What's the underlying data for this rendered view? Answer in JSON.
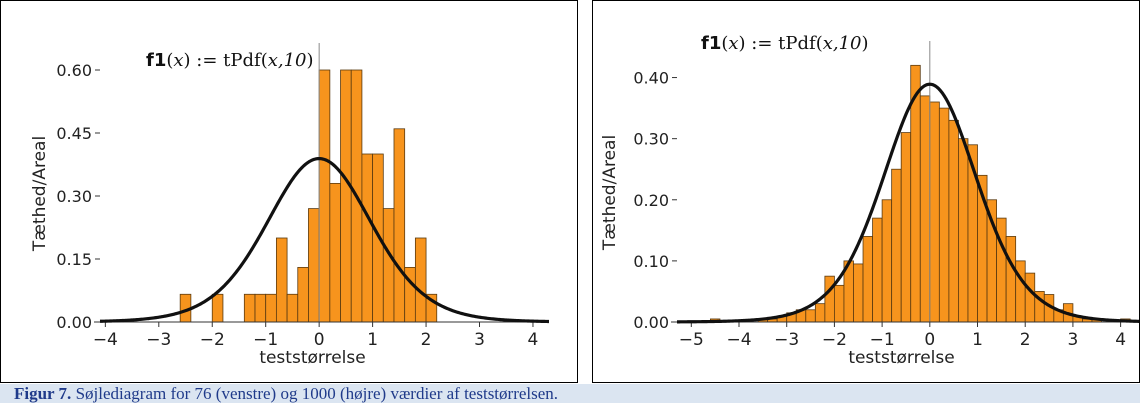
{
  "colors": {
    "bar_fill": "#f7941d",
    "bar_stroke": "#5a3a10",
    "curve": "#111111",
    "caption_bg": "#dbe5f1",
    "caption_text": "#1f3a8a"
  },
  "caption": {
    "label": "Figur 7.",
    "text": "Søjlediagram for 76 (venstre) og 1000 (højre) værdier af teststørrelsen."
  },
  "chart_data": [
    {
      "type": "bar",
      "title": "",
      "xlabel": "teststørrelse",
      "ylabel": "Tæthed/Areal",
      "formula": {
        "name": "f1",
        "arg": "x",
        "rhs_fn": "tPdf",
        "rhs_args": "x,10"
      },
      "xlim": [
        -4.1,
        4.3
      ],
      "ylim": [
        0,
        0.65
      ],
      "xticks": [
        "−4",
        "−3",
        "−2",
        "−1",
        "0",
        "1",
        "2",
        "3",
        "4"
      ],
      "xtick_values": [
        -4,
        -3,
        -2,
        -1,
        0,
        1,
        2,
        3,
        4
      ],
      "yticks": [
        "0.00",
        "0.15",
        "0.30",
        "0.45",
        "0.60"
      ],
      "ytick_values": [
        0,
        0.15,
        0.3,
        0.45,
        0.6
      ],
      "bin_width": 0.2,
      "bins": [
        {
          "x0": -2.6,
          "value": 0.066
        },
        {
          "x0": -2.4,
          "value": 0.0
        },
        {
          "x0": -2.2,
          "value": 0.0
        },
        {
          "x0": -2.0,
          "value": 0.066
        },
        {
          "x0": -1.8,
          "value": 0.0
        },
        {
          "x0": -1.6,
          "value": 0.0
        },
        {
          "x0": -1.4,
          "value": 0.066
        },
        {
          "x0": -1.2,
          "value": 0.066
        },
        {
          "x0": -1.0,
          "value": 0.066
        },
        {
          "x0": -0.8,
          "value": 0.2
        },
        {
          "x0": -0.6,
          "value": 0.066
        },
        {
          "x0": -0.4,
          "value": 0.13
        },
        {
          "x0": -0.2,
          "value": 0.27
        },
        {
          "x0": 0.0,
          "value": 0.6
        },
        {
          "x0": 0.2,
          "value": 0.33
        },
        {
          "x0": 0.4,
          "value": 0.6
        },
        {
          "x0": 0.6,
          "value": 0.6
        },
        {
          "x0": 0.8,
          "value": 0.4
        },
        {
          "x0": 1.0,
          "value": 0.4
        },
        {
          "x0": 1.2,
          "value": 0.27
        },
        {
          "x0": 1.4,
          "value": 0.46
        },
        {
          "x0": 1.6,
          "value": 0.13
        },
        {
          "x0": 1.8,
          "value": 0.2
        },
        {
          "x0": 2.0,
          "value": 0.066
        }
      ],
      "curve": "tPdf(x,10)"
    },
    {
      "type": "bar",
      "title": "",
      "xlabel": "teststørrelse",
      "ylabel": "Tæthed/Areal",
      "formula": {
        "name": "f1",
        "arg": "x",
        "rhs_fn": "tPdf",
        "rhs_args": "x,10"
      },
      "xlim": [
        -5.3,
        4.7
      ],
      "ylim": [
        0,
        0.45
      ],
      "xticks": [
        "−5",
        "−4",
        "−3",
        "−2",
        "−1",
        "0",
        "1",
        "2",
        "3",
        "4"
      ],
      "xtick_values": [
        -5,
        -4,
        -3,
        -2,
        -1,
        0,
        1,
        2,
        3,
        4
      ],
      "yticks": [
        "0.00",
        "0.10",
        "0.20",
        "0.30",
        "0.40"
      ],
      "ytick_values": [
        0,
        0.1,
        0.2,
        0.3,
        0.4
      ],
      "bin_width": 0.2,
      "bins": [
        {
          "x0": -4.6,
          "value": 0.005
        },
        {
          "x0": -4.4,
          "value": 0.0
        },
        {
          "x0": -4.2,
          "value": 0.0
        },
        {
          "x0": -4.0,
          "value": 0.0
        },
        {
          "x0": -3.8,
          "value": 0.0
        },
        {
          "x0": -3.6,
          "value": 0.005
        },
        {
          "x0": -3.4,
          "value": 0.005
        },
        {
          "x0": -3.2,
          "value": 0.01
        },
        {
          "x0": -3.0,
          "value": 0.015
        },
        {
          "x0": -2.8,
          "value": 0.02
        },
        {
          "x0": -2.6,
          "value": 0.02
        },
        {
          "x0": -2.4,
          "value": 0.03
        },
        {
          "x0": -2.2,
          "value": 0.075
        },
        {
          "x0": -2.0,
          "value": 0.06
        },
        {
          "x0": -1.8,
          "value": 0.1
        },
        {
          "x0": -1.6,
          "value": 0.095
        },
        {
          "x0": -1.4,
          "value": 0.14
        },
        {
          "x0": -1.2,
          "value": 0.17
        },
        {
          "x0": -1.0,
          "value": 0.2
        },
        {
          "x0": -0.8,
          "value": 0.25
        },
        {
          "x0": -0.6,
          "value": 0.31
        },
        {
          "x0": -0.4,
          "value": 0.42
        },
        {
          "x0": -0.2,
          "value": 0.37
        },
        {
          "x0": 0.0,
          "value": 0.36
        },
        {
          "x0": 0.2,
          "value": 0.35
        },
        {
          "x0": 0.4,
          "value": 0.33
        },
        {
          "x0": 0.6,
          "value": 0.3
        },
        {
          "x0": 0.8,
          "value": 0.29
        },
        {
          "x0": 1.0,
          "value": 0.24
        },
        {
          "x0": 1.2,
          "value": 0.2
        },
        {
          "x0": 1.4,
          "value": 0.17
        },
        {
          "x0": 1.6,
          "value": 0.14
        },
        {
          "x0": 1.8,
          "value": 0.1
        },
        {
          "x0": 2.0,
          "value": 0.08
        },
        {
          "x0": 2.2,
          "value": 0.05
        },
        {
          "x0": 2.4,
          "value": 0.045
        },
        {
          "x0": 2.6,
          "value": 0.02
        },
        {
          "x0": 2.8,
          "value": 0.03
        },
        {
          "x0": 3.0,
          "value": 0.01
        },
        {
          "x0": 3.2,
          "value": 0.005
        },
        {
          "x0": 3.4,
          "value": 0.005
        },
        {
          "x0": 3.6,
          "value": 0.0
        },
        {
          "x0": 3.8,
          "value": 0.0
        },
        {
          "x0": 4.0,
          "value": 0.005
        }
      ],
      "curve": "tPdf(x,10)"
    }
  ]
}
